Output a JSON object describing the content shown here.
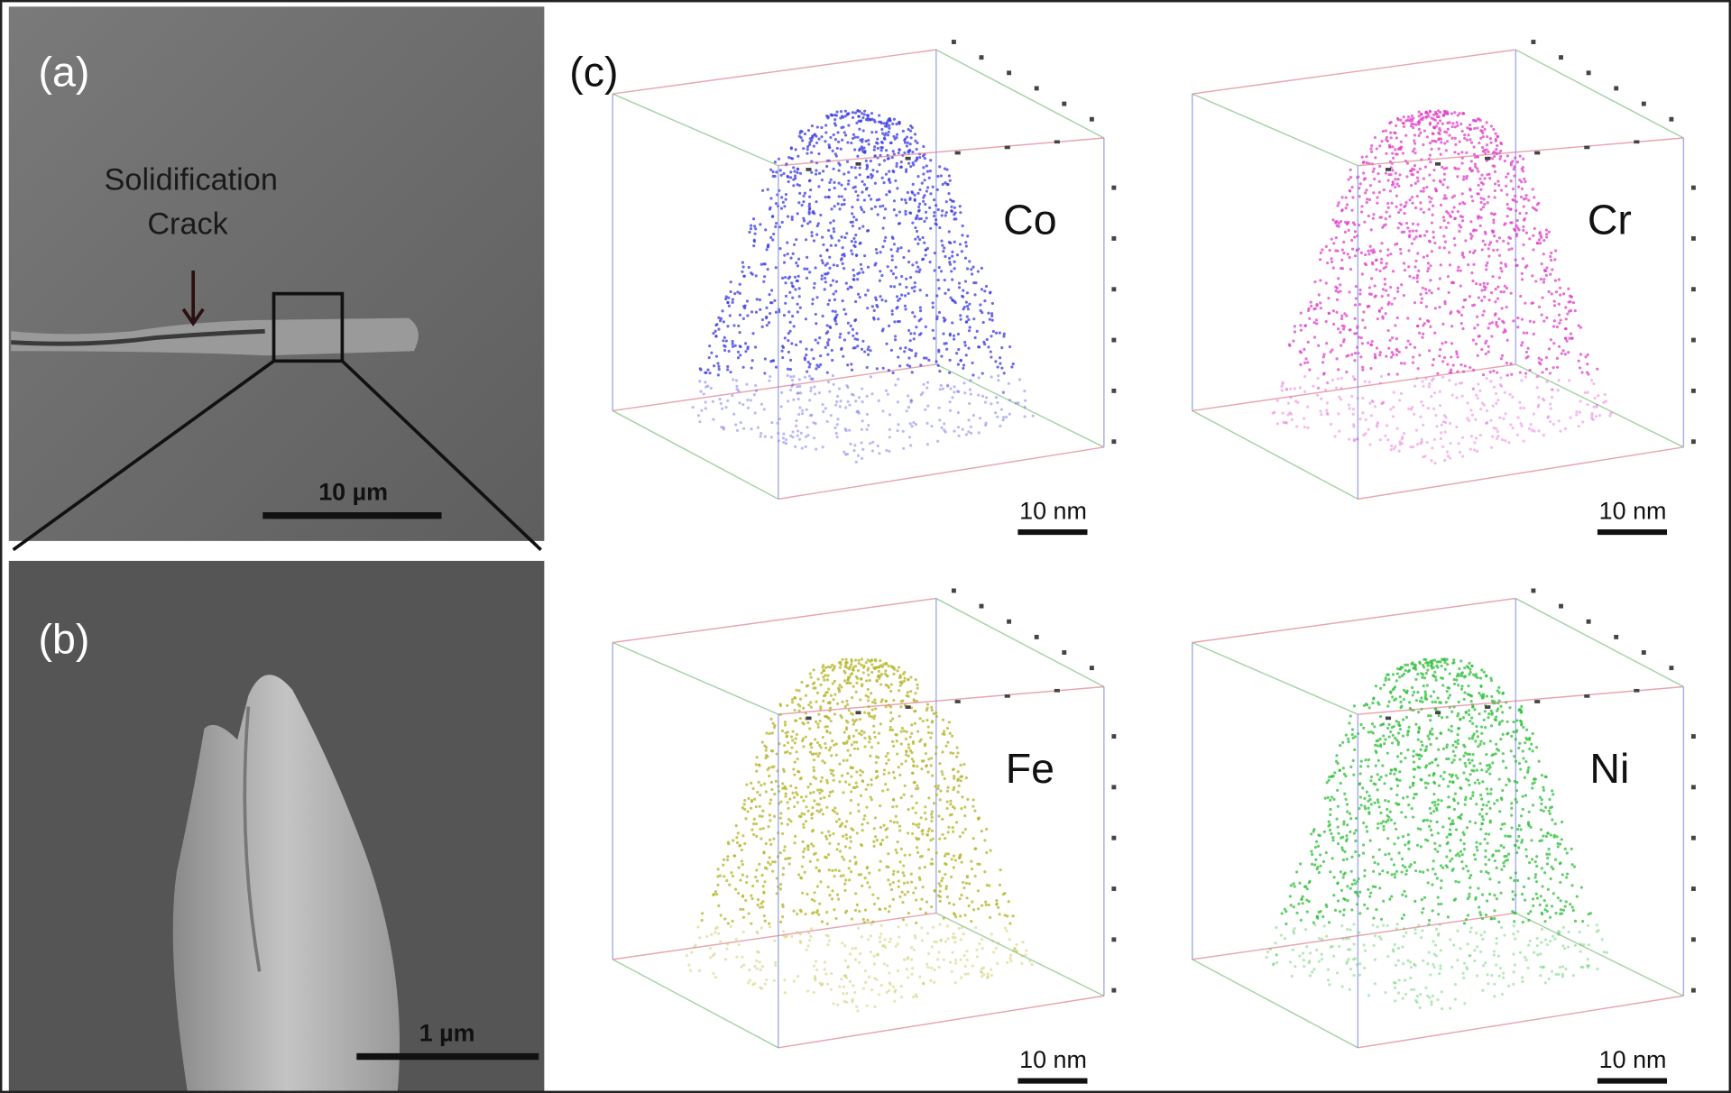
{
  "panel_a": {
    "label": "(a)",
    "annotation": [
      "Solidification",
      "Crack"
    ],
    "scale_bar": "10 µm"
  },
  "panel_b": {
    "label": "(b)",
    "scale_bar": "1 µm"
  },
  "panel_c": {
    "label": "(c)",
    "maps": [
      {
        "element": "Co",
        "scale_bar": "10 nm",
        "color": "#3b3be0"
      },
      {
        "element": "Cr",
        "scale_bar": "10 nm",
        "color": "#e040c8"
      },
      {
        "element": "Fe",
        "scale_bar": "10 nm",
        "color": "#b4b428"
      },
      {
        "element": "Ni",
        "scale_bar": "10 nm",
        "color": "#2fbf3a"
      }
    ]
  }
}
